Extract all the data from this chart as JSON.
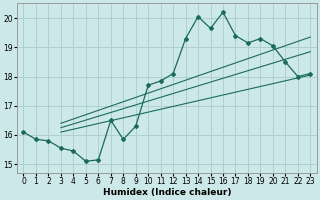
{
  "xlabel": "Humidex (Indice chaleur)",
  "xlim": [
    -0.5,
    23.5
  ],
  "ylim": [
    14.7,
    20.5
  ],
  "xticks": [
    0,
    1,
    2,
    3,
    4,
    5,
    6,
    7,
    8,
    9,
    10,
    11,
    12,
    13,
    14,
    15,
    16,
    17,
    18,
    19,
    20,
    21,
    22,
    23
  ],
  "yticks": [
    15,
    16,
    17,
    18,
    19,
    20
  ],
  "bg_color": "#cde8e8",
  "grid_color": "#b0d0d0",
  "line_color": "#1a6b5a",
  "main_series_x": [
    0,
    1,
    2,
    3,
    4,
    5,
    6,
    7,
    8,
    9,
    10,
    11,
    12,
    13,
    14,
    15,
    16,
    17,
    18,
    19,
    20,
    21,
    22,
    23
  ],
  "main_series_y": [
    16.1,
    15.85,
    15.8,
    15.55,
    15.45,
    15.1,
    15.15,
    16.5,
    15.85,
    16.3,
    17.7,
    17.85,
    18.1,
    19.3,
    20.05,
    19.65,
    20.2,
    19.4,
    19.15,
    19.3,
    19.05,
    18.5,
    18.0,
    18.1
  ],
  "reg_line1_x": [
    3,
    23
  ],
  "reg_line1_y": [
    16.1,
    18.05
  ],
  "reg_line2_x": [
    3,
    23
  ],
  "reg_line2_y": [
    16.25,
    18.85
  ],
  "reg_line3_x": [
    3,
    23
  ],
  "reg_line3_y": [
    16.4,
    19.35
  ]
}
